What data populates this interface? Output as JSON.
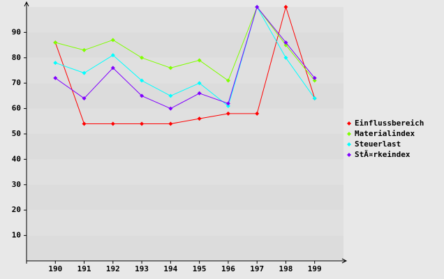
{
  "chart_data": {
    "type": "line",
    "categories": [
      "190",
      "191",
      "192",
      "193",
      "194",
      "195",
      "196",
      "197",
      "198",
      "199"
    ],
    "series": [
      {
        "name": "Einflussbereich",
        "color": "#ff0000",
        "values": [
          86,
          54,
          54,
          54,
          54,
          56,
          58,
          58,
          100,
          64
        ]
      },
      {
        "name": "Materialindex",
        "color": "#80ff00",
        "values": [
          86,
          83,
          87,
          80,
          76,
          79,
          71,
          100,
          85,
          71
        ]
      },
      {
        "name": "Steuerlast",
        "color": "#00ffff",
        "values": [
          78,
          74,
          81,
          71,
          65,
          70,
          61,
          100,
          80,
          64
        ]
      },
      {
        "name": "StÃ¤rkeindex",
        "color": "#8000ff",
        "values": [
          72,
          64,
          76,
          65,
          60,
          66,
          62,
          100,
          86,
          72
        ]
      }
    ],
    "ylim": [
      0,
      100
    ],
    "yticks": [
      10,
      20,
      30,
      40,
      50,
      60,
      70,
      80,
      90
    ],
    "grid": true,
    "legend": "right"
  }
}
